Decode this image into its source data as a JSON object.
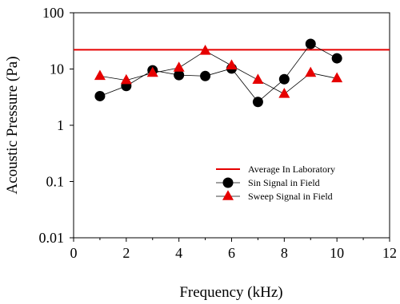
{
  "chart_data": {
    "type": "scatter",
    "xlabel": "Frequency (kHz)",
    "ylabel": "Acoustic Pressure (Pa)",
    "xlim": [
      0,
      12
    ],
    "ylim": [
      0.01,
      100
    ],
    "yscale": "log",
    "grid": false,
    "legend_position": "lower-right",
    "x_ticks": [
      0,
      2,
      4,
      6,
      8,
      10,
      12
    ],
    "x_tick_labels": [
      "0",
      "2",
      "4",
      "6",
      "8",
      "10",
      "12"
    ],
    "y_ticks": [
      0.01,
      0.1,
      1,
      10,
      100
    ],
    "y_tick_labels": [
      "0.01",
      "0.1",
      "1",
      "10",
      "100"
    ],
    "series": [
      {
        "name": "Average In Laboratory",
        "kind": "hline",
        "color": "#e60000",
        "y": 22
      },
      {
        "name": "Sin Signal in Field",
        "kind": "line-markers",
        "marker": "circle",
        "color": "#000000",
        "x": [
          1,
          2,
          3,
          4,
          5,
          6,
          7,
          8,
          9,
          10
        ],
        "y": [
          3.3,
          5.0,
          9.5,
          7.8,
          7.5,
          10.2,
          2.6,
          6.6,
          28,
          15.5
        ]
      },
      {
        "name": "Sweep Signal in Field",
        "kind": "line-markers",
        "marker": "triangle",
        "color": "#e60000",
        "x": [
          1,
          2,
          3,
          4,
          5,
          6,
          7,
          8,
          9,
          10
        ],
        "y": [
          7.5,
          6.3,
          8.5,
          10.5,
          21,
          11.5,
          6.4,
          3.6,
          8.5,
          6.8
        ]
      }
    ]
  }
}
